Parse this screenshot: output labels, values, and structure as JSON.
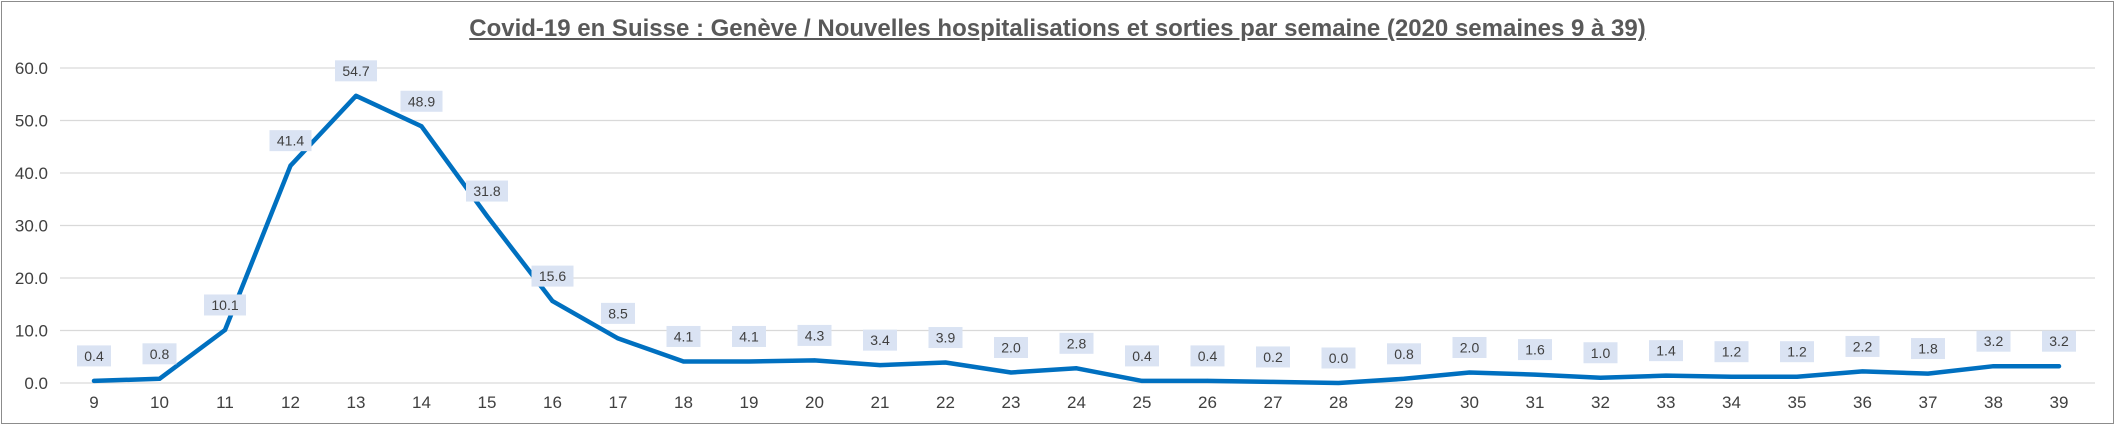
{
  "chart_data": {
    "type": "line",
    "title": "Covid-19 en Suisse : Genève / Nouvelles hospitalisations et sorties par semaine (2020 semaines 9 à 39)",
    "xlabel": "",
    "ylabel": "",
    "categories": [
      "9",
      "10",
      "11",
      "12",
      "13",
      "14",
      "15",
      "16",
      "17",
      "18",
      "19",
      "20",
      "21",
      "22",
      "23",
      "24",
      "25",
      "26",
      "27",
      "28",
      "29",
      "30",
      "31",
      "32",
      "33",
      "34",
      "35",
      "36",
      "37",
      "38",
      "39"
    ],
    "values": [
      0.4,
      0.8,
      10.1,
      41.4,
      54.7,
      48.9,
      31.8,
      15.6,
      8.5,
      4.1,
      4.1,
      4.3,
      3.4,
      3.9,
      2.0,
      2.8,
      0.4,
      0.4,
      0.2,
      0.0,
      0.8,
      2.0,
      1.6,
      1.0,
      1.4,
      1.2,
      1.2,
      2.2,
      1.8,
      3.2,
      3.2
    ],
    "data_labels": [
      "0.4",
      "0.8",
      "10.1",
      "41.4",
      "54.7",
      "48.9",
      "31.8",
      "15.6",
      "8.5",
      "4.1",
      "4.1",
      "4.3",
      "3.4",
      "3.9",
      "2.0",
      "2.8",
      "0.4",
      "0.4",
      "0.2",
      "0.0",
      "0.8",
      "2.0",
      "1.6",
      "1.0",
      "1.4",
      "1.2",
      "1.2",
      "2.2",
      "1.8",
      "3.2",
      "3.2"
    ],
    "yticks": [
      "0.0",
      "10.0",
      "20.0",
      "30.0",
      "40.0",
      "50.0",
      "60.0"
    ],
    "ylim": [
      0,
      60
    ],
    "grid": "horizontal",
    "legend": "none",
    "colors": {
      "line": "#0070c0",
      "label_bg": "#dae3f3",
      "grid": "#d9d9d9",
      "text": "#404040",
      "title": "#595959"
    }
  }
}
